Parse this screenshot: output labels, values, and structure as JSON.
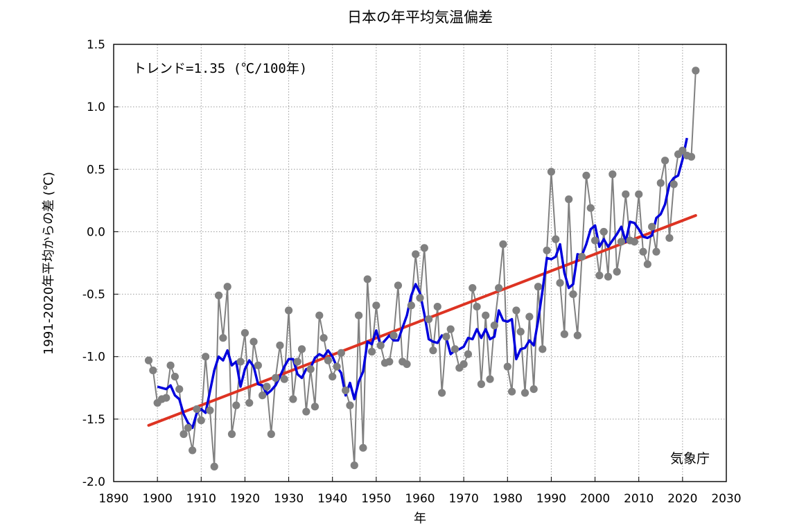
{
  "chart_data": {
    "type": "line",
    "title": "日本の年平均気温偏差",
    "xlabel": "年",
    "ylabel": "1991-2020年平均からの差 (℃)",
    "xlim": [
      1890,
      2030
    ],
    "ylim": [
      -2.0,
      1.5
    ],
    "x_ticks": [
      1890,
      1900,
      1910,
      1920,
      1930,
      1940,
      1950,
      1960,
      1970,
      1980,
      1990,
      2000,
      2010,
      2020,
      2030
    ],
    "y_ticks": [
      1.5,
      1.0,
      0.5,
      0.0,
      -0.5,
      -1.0,
      -1.5,
      -2.0
    ],
    "y_tick_labels": [
      "1.5",
      "1.0",
      "0.5",
      "0.0",
      "-0.5",
      "-1.0",
      "-1.5",
      "-2.0"
    ],
    "grid": true,
    "annotation": "トレンド=1.35 (℃/100年)",
    "credit": "気象庁",
    "series": [
      {
        "kind": "annual",
        "color": "#808080",
        "x": [
          1898,
          1899,
          1900,
          1901,
          1902,
          1903,
          1904,
          1905,
          1906,
          1907,
          1908,
          1909,
          1910,
          1911,
          1912,
          1913,
          1914,
          1915,
          1916,
          1917,
          1918,
          1919,
          1920,
          1921,
          1922,
          1923,
          1924,
          1925,
          1926,
          1927,
          1928,
          1929,
          1930,
          1931,
          1932,
          1933,
          1934,
          1935,
          1936,
          1937,
          1938,
          1939,
          1940,
          1941,
          1942,
          1943,
          1944,
          1945,
          1946,
          1947,
          1948,
          1949,
          1950,
          1951,
          1952,
          1953,
          1954,
          1955,
          1956,
          1957,
          1958,
          1959,
          1960,
          1961,
          1962,
          1963,
          1964,
          1965,
          1966,
          1967,
          1968,
          1969,
          1970,
          1971,
          1972,
          1973,
          1974,
          1975,
          1976,
          1977,
          1978,
          1979,
          1980,
          1981,
          1982,
          1983,
          1984,
          1985,
          1986,
          1987,
          1988,
          1989,
          1990,
          1991,
          1992,
          1993,
          1994,
          1995,
          1996,
          1997,
          1998,
          1999,
          2000,
          2001,
          2002,
          2003,
          2004,
          2005,
          2006,
          2007,
          2008,
          2009,
          2010,
          2011,
          2012,
          2013,
          2014,
          2015,
          2016,
          2017,
          2018,
          2019,
          2020,
          2021,
          2022,
          2023
        ],
        "values": [
          -1.03,
          -1.11,
          -1.37,
          -1.34,
          -1.33,
          -1.07,
          -1.16,
          -1.26,
          -1.62,
          -1.57,
          -1.75,
          -1.42,
          -1.51,
          -1.0,
          -1.43,
          -1.88,
          -0.51,
          -0.85,
          -0.44,
          -1.62,
          -1.39,
          -1.04,
          -0.81,
          -1.37,
          -0.88,
          -1.07,
          -1.31,
          -1.24,
          -1.62,
          -1.17,
          -0.91,
          -1.18,
          -0.63,
          -1.34,
          -1.04,
          -0.94,
          -1.44,
          -1.1,
          -1.4,
          -0.67,
          -0.85,
          -1.03,
          -1.16,
          -1.08,
          -0.97,
          -1.27,
          -1.39,
          -1.87,
          -0.67,
          -1.73,
          -0.38,
          -0.96,
          -0.59,
          -0.91,
          -1.05,
          -1.04,
          -0.83,
          -0.43,
          -1.04,
          -1.06,
          -0.59,
          -0.18,
          -0.53,
          -0.13,
          -0.7,
          -0.95,
          -0.6,
          -1.29,
          -0.84,
          -0.78,
          -0.94,
          -1.09,
          -1.06,
          -0.98,
          -0.45,
          -0.6,
          -1.22,
          -0.67,
          -1.18,
          -0.75,
          -0.45,
          -0.1,
          -1.08,
          -1.28,
          -0.63,
          -0.8,
          -1.29,
          -0.68,
          -1.26,
          -0.44,
          -0.94,
          -0.15,
          0.48,
          -0.06,
          -0.41,
          -0.82,
          0.26,
          -0.5,
          -0.83,
          -0.2,
          0.45,
          0.19,
          -0.07,
          -0.35,
          0.0,
          -0.36,
          0.46,
          -0.32,
          -0.08,
          0.3,
          -0.07,
          -0.08,
          0.3,
          -0.16,
          -0.26,
          0.04,
          -0.16,
          0.39,
          0.57,
          -0.05,
          0.38,
          0.62,
          0.65,
          0.61,
          0.6,
          1.29
        ]
      },
      {
        "kind": "5-year running mean",
        "color": "#0000dd",
        "x": [
          1900,
          1901,
          1902,
          1903,
          1904,
          1905,
          1906,
          1907,
          1908,
          1909,
          1910,
          1911,
          1912,
          1913,
          1914,
          1915,
          1916,
          1917,
          1918,
          1919,
          1920,
          1921,
          1922,
          1923,
          1924,
          1925,
          1926,
          1927,
          1928,
          1929,
          1930,
          1931,
          1932,
          1933,
          1934,
          1935,
          1936,
          1937,
          1938,
          1939,
          1940,
          1941,
          1942,
          1943,
          1944,
          1945,
          1946,
          1947,
          1948,
          1949,
          1950,
          1951,
          1952,
          1953,
          1954,
          1955,
          1956,
          1957,
          1958,
          1959,
          1960,
          1961,
          1962,
          1963,
          1964,
          1965,
          1966,
          1967,
          1968,
          1969,
          1970,
          1971,
          1972,
          1973,
          1974,
          1975,
          1976,
          1977,
          1978,
          1979,
          1980,
          1981,
          1982,
          1983,
          1984,
          1985,
          1986,
          1987,
          1988,
          1989,
          1990,
          1991,
          1992,
          1993,
          1994,
          1995,
          1996,
          1997,
          1998,
          1999,
          2000,
          2001,
          2002,
          2003,
          2004,
          2005,
          2006,
          2007,
          2008,
          2009,
          2010,
          2011,
          2012,
          2013,
          2014,
          2015,
          2016,
          2017,
          2018,
          2019,
          2020,
          2021
        ],
        "values": [
          -1.24,
          -1.25,
          -1.26,
          -1.23,
          -1.31,
          -1.34,
          -1.46,
          -1.53,
          -1.57,
          -1.45,
          -1.42,
          -1.45,
          -1.28,
          -1.11,
          -1.0,
          -1.03,
          -0.95,
          -1.07,
          -1.04,
          -1.24,
          -1.1,
          -1.03,
          -1.08,
          -1.22,
          -1.23,
          -1.3,
          -1.27,
          -1.23,
          -1.16,
          -1.08,
          -1.02,
          -1.02,
          -1.14,
          -1.17,
          -1.1,
          -1.09,
          -1.01,
          -0.98,
          -1.0,
          -0.95,
          -1.0,
          -1.08,
          -1.13,
          -1.31,
          -1.21,
          -1.34,
          -1.2,
          -1.12,
          -0.88,
          -0.9,
          -0.79,
          -0.91,
          -0.87,
          -0.83,
          -0.87,
          -0.87,
          -0.77,
          -0.67,
          -0.51,
          -0.42,
          -0.49,
          -0.66,
          -0.86,
          -0.88,
          -0.89,
          -0.83,
          -0.85,
          -0.98,
          -0.95,
          -0.94,
          -0.92,
          -0.85,
          -0.86,
          -0.78,
          -0.85,
          -0.78,
          -0.86,
          -0.84,
          -0.63,
          -0.71,
          -0.72,
          -0.7,
          -1.02,
          -0.94,
          -0.93,
          -0.87,
          -0.91,
          -0.71,
          -0.47,
          -0.21,
          -0.22,
          -0.2,
          -0.1,
          -0.33,
          -0.45,
          -0.42,
          -0.18,
          -0.19,
          -0.1,
          0.02,
          0.05,
          -0.12,
          -0.06,
          -0.12,
          -0.07,
          -0.02,
          0.04,
          -0.08,
          0.08,
          0.07,
          0.02,
          -0.04,
          -0.05,
          -0.03,
          0.11,
          0.14,
          0.22,
          0.38,
          0.43,
          0.45,
          0.58,
          0.75
        ]
      },
      {
        "kind": "trend",
        "color": "#dd3322",
        "x": [
          1898,
          2023
        ],
        "values": [
          -1.55,
          0.13
        ]
      }
    ]
  }
}
